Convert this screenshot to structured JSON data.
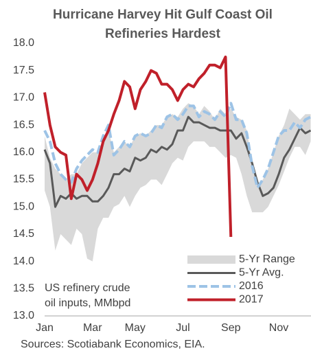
{
  "chart_data": {
    "type": "line",
    "title": [
      "Hurricane Harvey Hit Gulf Coast Oil",
      "Refineries Hardest"
    ],
    "annotation": [
      "US refinery crude",
      "oil inputs, MMbpd"
    ],
    "source": "Sources: Scotiabank Economics, EIA.",
    "categories": [
      "Jan",
      null,
      null,
      null,
      null,
      null,
      null,
      null,
      null,
      "Mar",
      null,
      null,
      null,
      null,
      null,
      null,
      null,
      "May",
      null,
      null,
      null,
      null,
      null,
      null,
      null,
      null,
      "Jul",
      null,
      null,
      null,
      null,
      null,
      null,
      null,
      null,
      "Sep",
      null,
      null,
      null,
      null,
      null,
      null,
      null,
      null,
      "Nov",
      null,
      null,
      null,
      null,
      null,
      null
    ],
    "ylim": [
      13,
      18
    ],
    "yticks": [
      {
        "value": 13,
        "label": "13.0"
      },
      13.5,
      {
        "value": 14,
        "label": "14.0"
      },
      14.5,
      {
        "value": 15,
        "label": "15.0"
      },
      15.5,
      {
        "value": 16,
        "label": "16.0"
      },
      16.5,
      {
        "value": 17,
        "label": "17.0"
      },
      17.5,
      {
        "value": 18,
        "label": "18.0"
      }
    ],
    "legend": "lower right",
    "series": [
      {
        "name": "5-Yr Range",
        "color": "#d9d9d9",
        "high": [
          16.3,
          15.9,
          15.7,
          15.6,
          15.5,
          15.6,
          15.6,
          15.8,
          15.9,
          16.0,
          16.0,
          16.25,
          16.4,
          16.0,
          16.1,
          16.2,
          16.1,
          16.3,
          16.35,
          16.3,
          16.4,
          16.5,
          16.5,
          16.65,
          16.7,
          16.65,
          16.8,
          16.9,
          16.85,
          16.7,
          16.85,
          16.75,
          16.6,
          16.8,
          16.7,
          16.8,
          16.65,
          16.6,
          16.4,
          15.8,
          15.4,
          15.5,
          15.7,
          16.0,
          16.3,
          16.5,
          16.8,
          16.7,
          16.6,
          16.7,
          16.7
        ],
        "low": [
          15.3,
          15.0,
          14.2,
          14.5,
          14.4,
          14.3,
          14.6,
          14.5,
          14.05,
          14.0,
          14.6,
          14.8,
          14.8,
          15.0,
          15.05,
          15.2,
          15.0,
          15.2,
          15.35,
          15.4,
          15.5,
          15.5,
          15.4,
          15.6,
          15.8,
          15.9,
          15.85,
          16.1,
          16.2,
          16.2,
          16.2,
          16.1,
          16.1,
          16.0,
          15.9,
          15.95,
          15.9,
          15.6,
          15.2,
          14.9,
          14.9,
          14.9,
          15.0,
          15.2,
          15.4,
          15.65,
          15.9,
          16.1,
          16.1,
          15.95,
          16.2
        ]
      },
      {
        "name": "5-Yr Avg.",
        "color": "#595959",
        "values": [
          16.05,
          15.8,
          15.0,
          15.2,
          15.15,
          15.25,
          15.15,
          15.2,
          15.2,
          15.1,
          15.1,
          15.2,
          15.35,
          15.6,
          15.6,
          15.7,
          15.65,
          15.9,
          15.85,
          15.9,
          16.05,
          16.0,
          16.1,
          16.05,
          16.15,
          16.4,
          16.4,
          16.65,
          16.55,
          16.55,
          16.5,
          16.45,
          16.45,
          16.4,
          16.4,
          16.4,
          16.25,
          16.35,
          16.1,
          15.8,
          15.45,
          15.2,
          15.25,
          15.35,
          15.6,
          15.9,
          16.05,
          16.25,
          16.45,
          16.35,
          16.4
        ]
      },
      {
        "name": "2016",
        "color": "#9dc3e6",
        "dashed": true,
        "values": [
          16.4,
          16.2,
          15.8,
          15.6,
          15.5,
          15.45,
          15.7,
          15.85,
          15.95,
          16.05,
          16.0,
          16.3,
          16.5,
          15.95,
          16.05,
          16.2,
          16.1,
          16.3,
          16.35,
          16.3,
          16.35,
          16.5,
          16.45,
          16.65,
          16.7,
          16.6,
          16.7,
          16.85,
          16.85,
          16.65,
          16.75,
          16.7,
          16.6,
          16.75,
          16.65,
          16.9,
          16.6,
          16.6,
          16.35,
          15.75,
          15.35,
          15.5,
          15.7,
          16.0,
          16.3,
          16.4,
          16.4,
          16.55,
          16.45,
          16.6,
          16.65
        ]
      },
      {
        "name": "2017",
        "color": "#c0202a",
        "values": [
          17.1,
          16.5,
          16.1,
          16.0,
          15.95,
          15.15,
          15.6,
          15.5,
          15.3,
          15.5,
          15.8,
          16.2,
          16.4,
          16.7,
          16.95,
          17.3,
          17.2,
          16.8,
          17.15,
          17.3,
          17.5,
          17.45,
          17.25,
          17.25,
          17.15,
          16.95,
          17.15,
          17.25,
          17.2,
          17.35,
          17.45,
          17.6,
          17.6,
          17.55,
          17.75,
          14.45,
          null,
          null,
          null,
          null,
          null,
          null,
          null,
          null,
          null,
          null,
          null,
          null,
          null,
          null,
          null
        ]
      }
    ]
  }
}
